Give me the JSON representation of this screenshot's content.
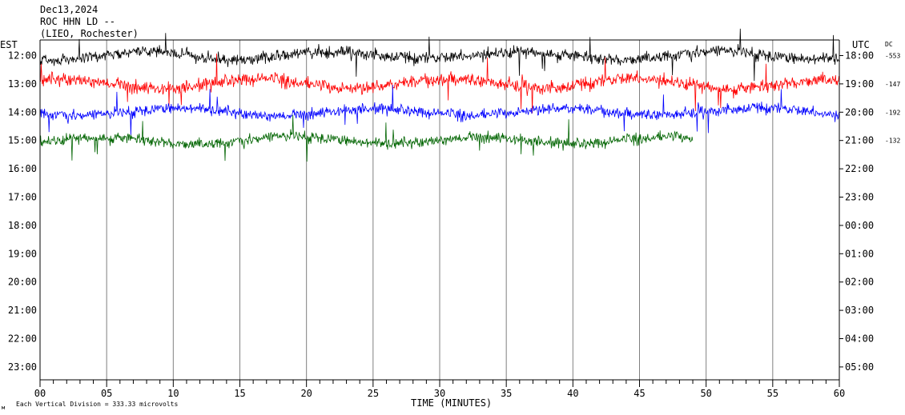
{
  "header": {
    "date": "Dec13,2024",
    "station": "ROC HHN LD --",
    "location": "(LIEO, Rochester)"
  },
  "footer": {
    "mark": "м",
    "scale_note": "Each Vertical Division =  333.33 microvolts"
  },
  "chart_data": {
    "type": "line",
    "title": "",
    "xlabel": "TIME (MINUTES)",
    "x_ticks": [
      "00",
      "05",
      "10",
      "15",
      "20",
      "25",
      "30",
      "35",
      "40",
      "45",
      "50",
      "55",
      "60"
    ],
    "xlim": [
      0,
      60
    ],
    "left_axis_label": "EST",
    "right_axis_label": "UTC",
    "dc_label": "DC",
    "left_ticks": [
      "12:00",
      "13:00",
      "14:00",
      "15:00",
      "16:00",
      "17:00",
      "18:00",
      "19:00",
      "20:00",
      "21:00",
      "22:00",
      "23:00"
    ],
    "right_ticks": [
      "18:00",
      "19:00",
      "20:00",
      "21:00",
      "22:00",
      "23:00",
      "00:00",
      "01:00",
      "02:00",
      "03:00",
      "04:00",
      "05:00"
    ],
    "dc_values": [
      "-553",
      "-147",
      "-192",
      "-132"
    ],
    "colors": {
      "ink": "#000000",
      "grid": "#808080"
    },
    "series": [
      {
        "color": "#000000",
        "hour_row": 0,
        "x_end": 60,
        "amplitude": 0.55
      },
      {
        "color": "#ff0000",
        "hour_row": 1,
        "x_end": 60,
        "amplitude": 0.6
      },
      {
        "color": "#0000ff",
        "hour_row": 2,
        "x_end": 60,
        "amplitude": 0.5
      },
      {
        "color": "#006400",
        "hour_row": 3,
        "x_end": 49,
        "amplitude": 0.5
      }
    ]
  }
}
